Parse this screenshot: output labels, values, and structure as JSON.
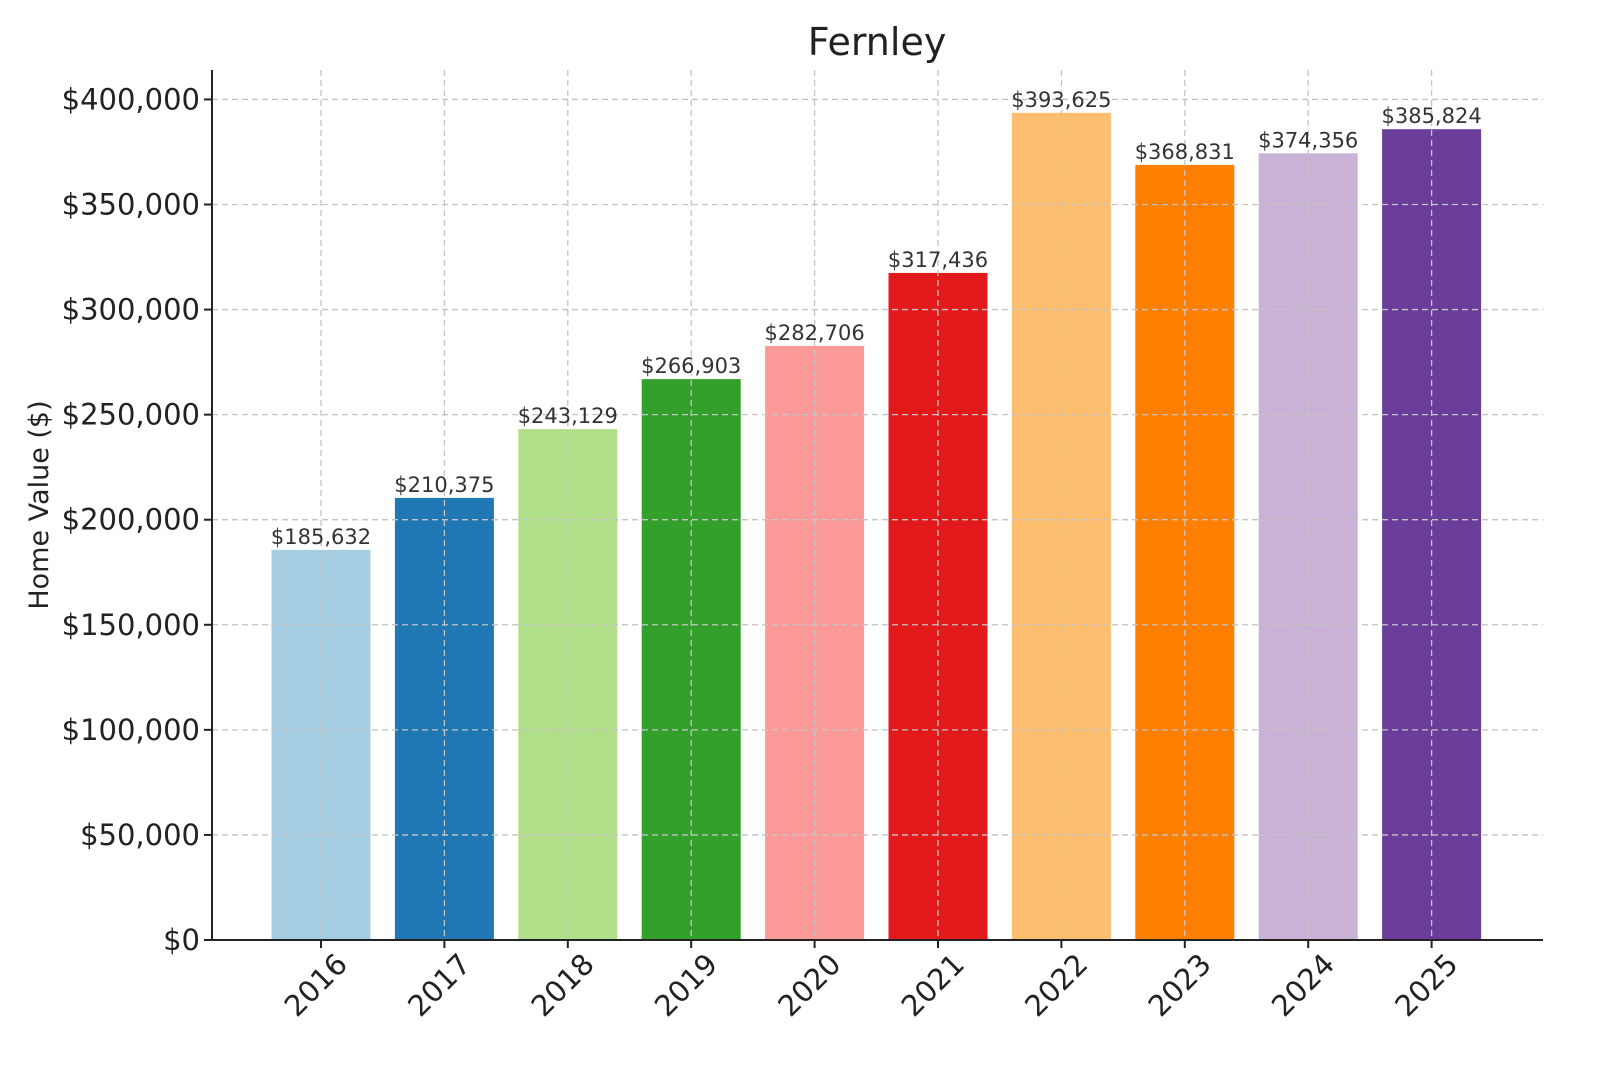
{
  "chart_data": {
    "type": "bar",
    "title": "Fernley",
    "xlabel": "",
    "ylabel": "Home Value ($)",
    "categories": [
      "2016",
      "2017",
      "2018",
      "2019",
      "2020",
      "2021",
      "2022",
      "2023",
      "2024",
      "2025"
    ],
    "values": [
      185632,
      210375,
      243129,
      266903,
      282706,
      317436,
      393625,
      368831,
      374356,
      385824
    ],
    "value_labels": [
      "$185,632",
      "$210,375",
      "$243,129",
      "$266,903",
      "$282,706",
      "$317,436",
      "$393,625",
      "$368,831",
      "$374,356",
      "$385,824"
    ],
    "bar_colors": [
      "#a6cee3",
      "#1f78b4",
      "#b2df8a",
      "#33a02c",
      "#fb9a99",
      "#e31a1c",
      "#fdbf6f",
      "#ff7f00",
      "#cab2d6",
      "#6a3d9a"
    ],
    "ylim": [
      0,
      414000
    ],
    "yticks": [
      0,
      50000,
      100000,
      150000,
      200000,
      250000,
      300000,
      350000,
      400000
    ],
    "ytick_labels": [
      "$0",
      "$50,000",
      "$100,000",
      "$150,000",
      "$200,000",
      "$250,000",
      "$300,000",
      "$350,000",
      "$400,000"
    ],
    "grid": true,
    "legend": "none"
  }
}
